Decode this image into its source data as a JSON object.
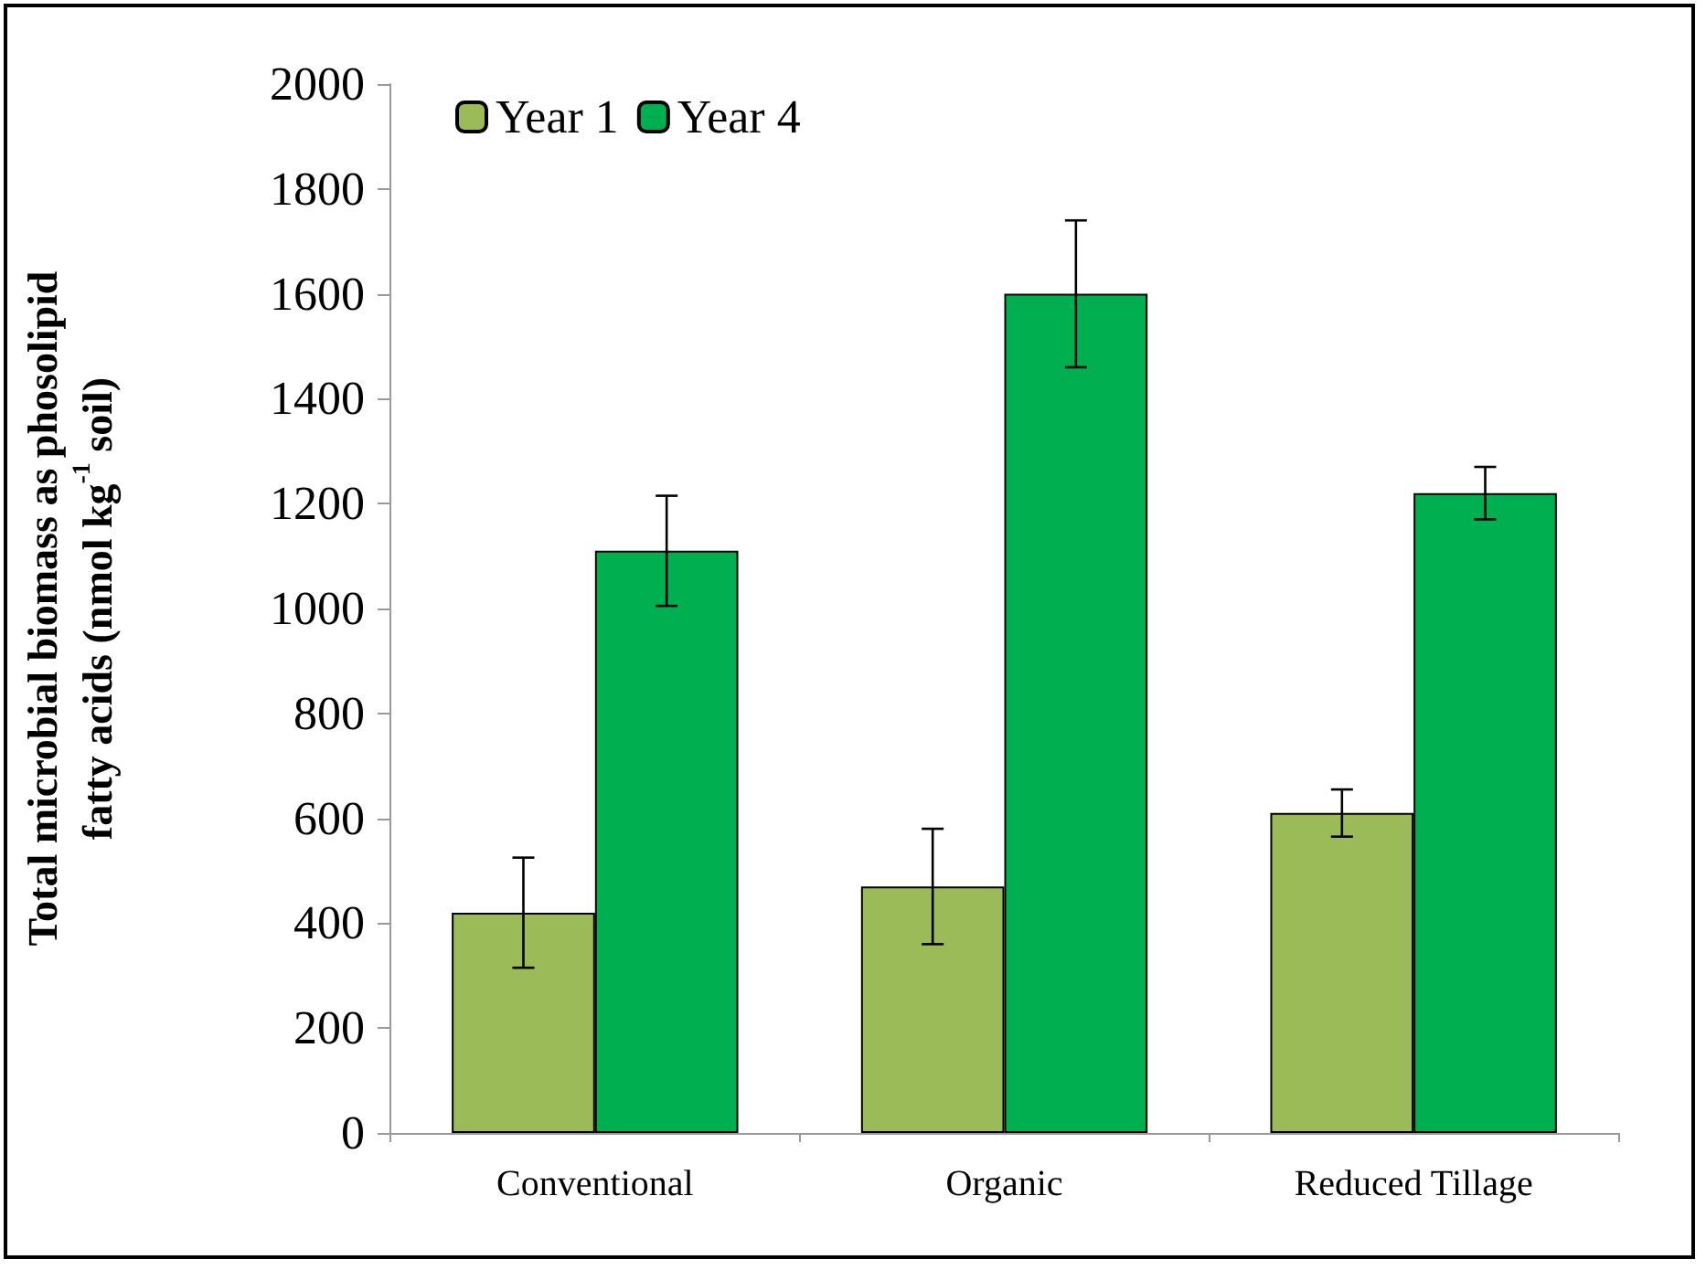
{
  "chart_data": {
    "type": "bar",
    "ylabel": "Total microbial biomass as phosolipid\nfatty acids (nmol kg$^{-1}$ soil)",
    "categories": [
      "Conventional",
      "Organic",
      "Reduced Tillage"
    ],
    "series": [
      {
        "name": "Year 1",
        "color": "#9bbb59",
        "values": [
          420,
          470,
          610
        ],
        "errors": [
          105,
          110,
          45
        ]
      },
      {
        "name": "Year 4",
        "color": "#00b050",
        "values": [
          1110,
          1600,
          1220
        ],
        "errors": [
          105,
          140,
          50
        ]
      }
    ],
    "ylim": [
      0,
      2000
    ],
    "yticks": [
      0,
      200,
      400,
      600,
      800,
      1000,
      1200,
      1400,
      1600,
      1800,
      2000
    ],
    "grid": false,
    "legend": "top left"
  }
}
